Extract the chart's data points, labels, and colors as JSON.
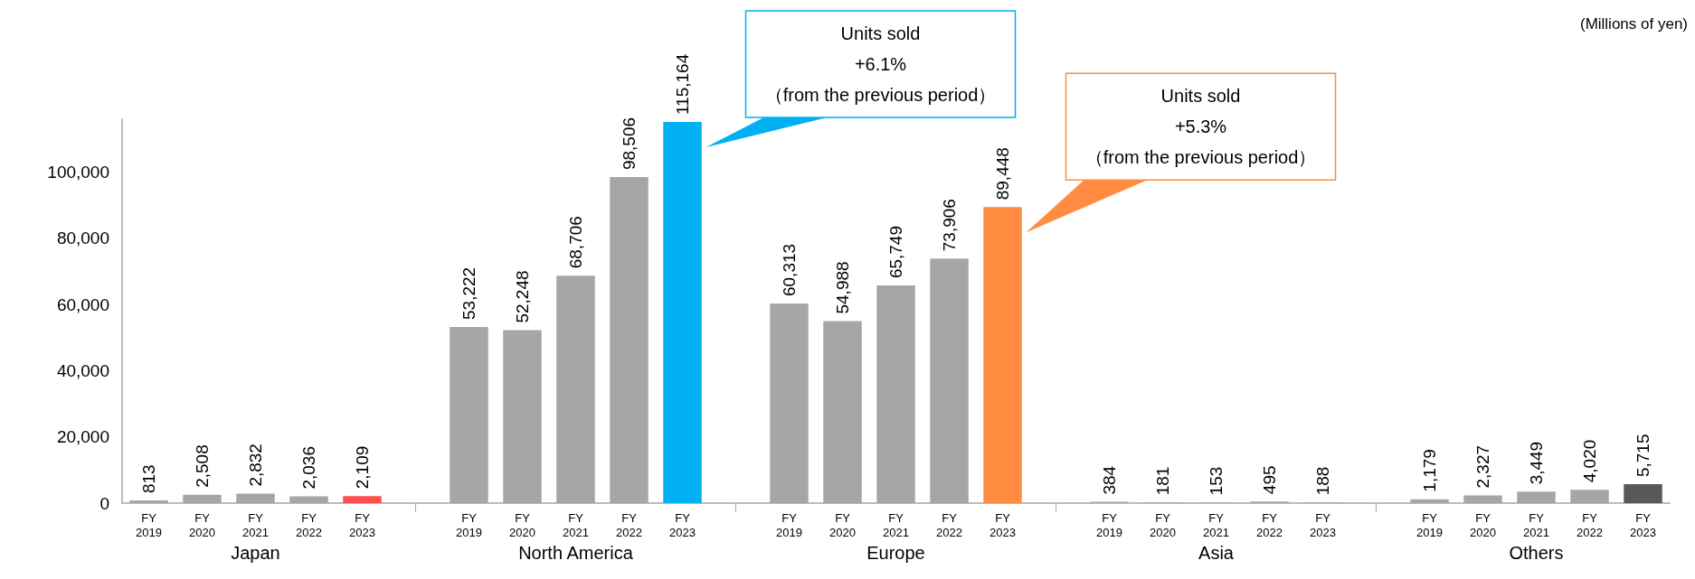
{
  "chart_data": {
    "type": "bar",
    "value_labels": [
      "813",
      "2,508",
      "2,832",
      "2,036",
      "2,109",
      null,
      "53,222",
      "52,248",
      "68,706",
      "98,506",
      "115,164",
      null,
      "60,313",
      "54,988",
      "65,749",
      "73,906",
      "89,448",
      null,
      "384",
      "181",
      "153",
      "495",
      "188",
      null,
      "1,179",
      "2,327",
      "3,449",
      "4,020",
      "5,715"
    ],
    "categories": [
      "FY\n2019",
      "FY\n2020",
      "FY\n2021",
      "FY\n2022",
      "FY\n2023",
      null,
      "FY\n2019",
      "FY\n2020",
      "FY\n2021",
      "FY\n2022",
      "FY\n2023",
      null,
      "FY\n2019",
      "FY\n2020",
      "FY\n2021",
      "FY\n2022",
      "FY\n2023",
      null,
      "FY\n2019",
      "FY\n2020",
      "FY\n2021",
      "FY\n2022",
      "FY\n2023",
      null,
      "FY\n2019",
      "FY\n2020",
      "FY\n2021",
      "FY\n2022",
      "FY\n2023"
    ],
    "values": [
      813,
      2508,
      2832,
      2036,
      2109,
      null,
      53222,
      52248,
      68706,
      98506,
      115164,
      null,
      60313,
      54988,
      65749,
      73906,
      89448,
      null,
      384,
      181,
      153,
      495,
      188,
      null,
      1179,
      2327,
      3449,
      4020,
      5715
    ],
    "colors": [
      "#a6a6a6",
      "#a6a6a6",
      "#a6a6a6",
      "#a6a6a6",
      "#ff5050",
      null,
      "#a6a6a6",
      "#a6a6a6",
      "#a6a6a6",
      "#a6a6a6",
      "#00b0f0",
      null,
      "#a6a6a6",
      "#a6a6a6",
      "#a6a6a6",
      "#a6a6a6",
      "#ff8c40",
      null,
      "#a6a6a6",
      "#a6a6a6",
      "#a6a6a6",
      "#a6a6a6",
      "#a6a6a6",
      null,
      "#a6a6a6",
      "#a6a6a6",
      "#a6a6a6",
      "#a6a6a6",
      "#595959"
    ],
    "ylim": [
      0,
      116000
    ],
    "yticks": [
      0,
      {
        "value": 20000,
        "label": "20,000"
      },
      {
        "value": 40000,
        "label": "40,000"
      },
      {
        "value": 60000,
        "label": "60,000"
      },
      {
        "value": 80000,
        "label": "80,000"
      },
      {
        "value": 100000,
        "label": "100,000"
      }
    ],
    "annotations": [
      "(Millions of yen)",
      "Japan",
      "North America",
      "Europe",
      "Asia",
      "Others",
      "Units sold\n+6.1%\n（from the previous period）",
      "Units sold\n+5.3%\n（from the previous period）"
    ]
  }
}
